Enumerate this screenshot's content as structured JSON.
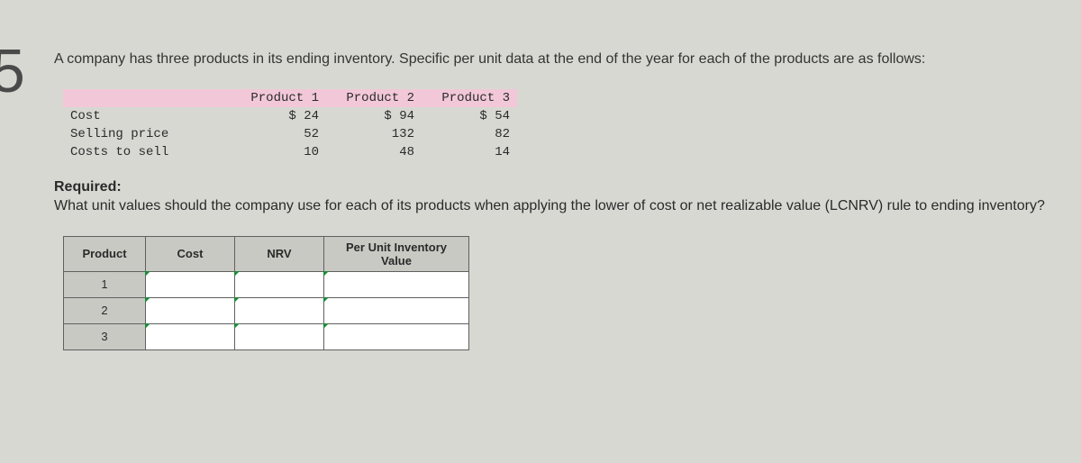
{
  "page_number": "5",
  "intro_text": "A company has three products in its ending inventory. Specific per unit data at the end of the year for each of the products are as follows:",
  "data_table": {
    "columns": [
      "Product 1",
      "Product 2",
      "Product 3"
    ],
    "rows": [
      {
        "label": "Cost",
        "c1": "$ 24",
        "c2": "$ 94",
        "c3": "$ 54"
      },
      {
        "label": "Selling price",
        "c1": "52",
        "c2": "132",
        "c3": "82"
      },
      {
        "label": "Costs to sell",
        "c1": "10",
        "c2": "48",
        "c3": "14"
      }
    ]
  },
  "required_label": "Required:",
  "required_text": "What unit values should the company use for each of its products when applying the lower of cost or net realizable value (LCNRV) rule to ending inventory?",
  "answer_table": {
    "headers": {
      "product": "Product",
      "cost": "Cost",
      "nrv": "NRV",
      "per_unit": "Per Unit Inventory Value"
    },
    "row_labels": [
      "1",
      "2",
      "3"
    ]
  },
  "colors": {
    "page_bg": "#d8d8d3",
    "header_pink": "#f2c8d8",
    "answer_header_bg": "#c9c9c4",
    "cell_bg": "#ffffff",
    "border": "#606060",
    "tick": "#1f8a3b"
  }
}
